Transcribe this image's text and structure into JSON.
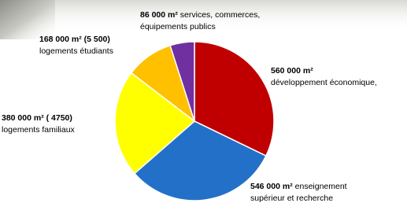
{
  "chart_data": {
    "type": "pie",
    "categories": [
      "développement économique,",
      "enseignement supérieur et recherche",
      "logements familiaux",
      "logements étudiants",
      "services, commerces, équipements publics"
    ],
    "values": [
      560000,
      546000,
      380000,
      168000,
      86000
    ],
    "value_labels": [
      "560 000 m²",
      "546 000 m²",
      "380 000 m² ( 4750)",
      "168 000 m² (5 500)",
      "86 000 m²"
    ],
    "colors": [
      "#c00000",
      "#2370c8",
      "#ffff00",
      "#ffc000",
      "#7030a0"
    ]
  }
}
